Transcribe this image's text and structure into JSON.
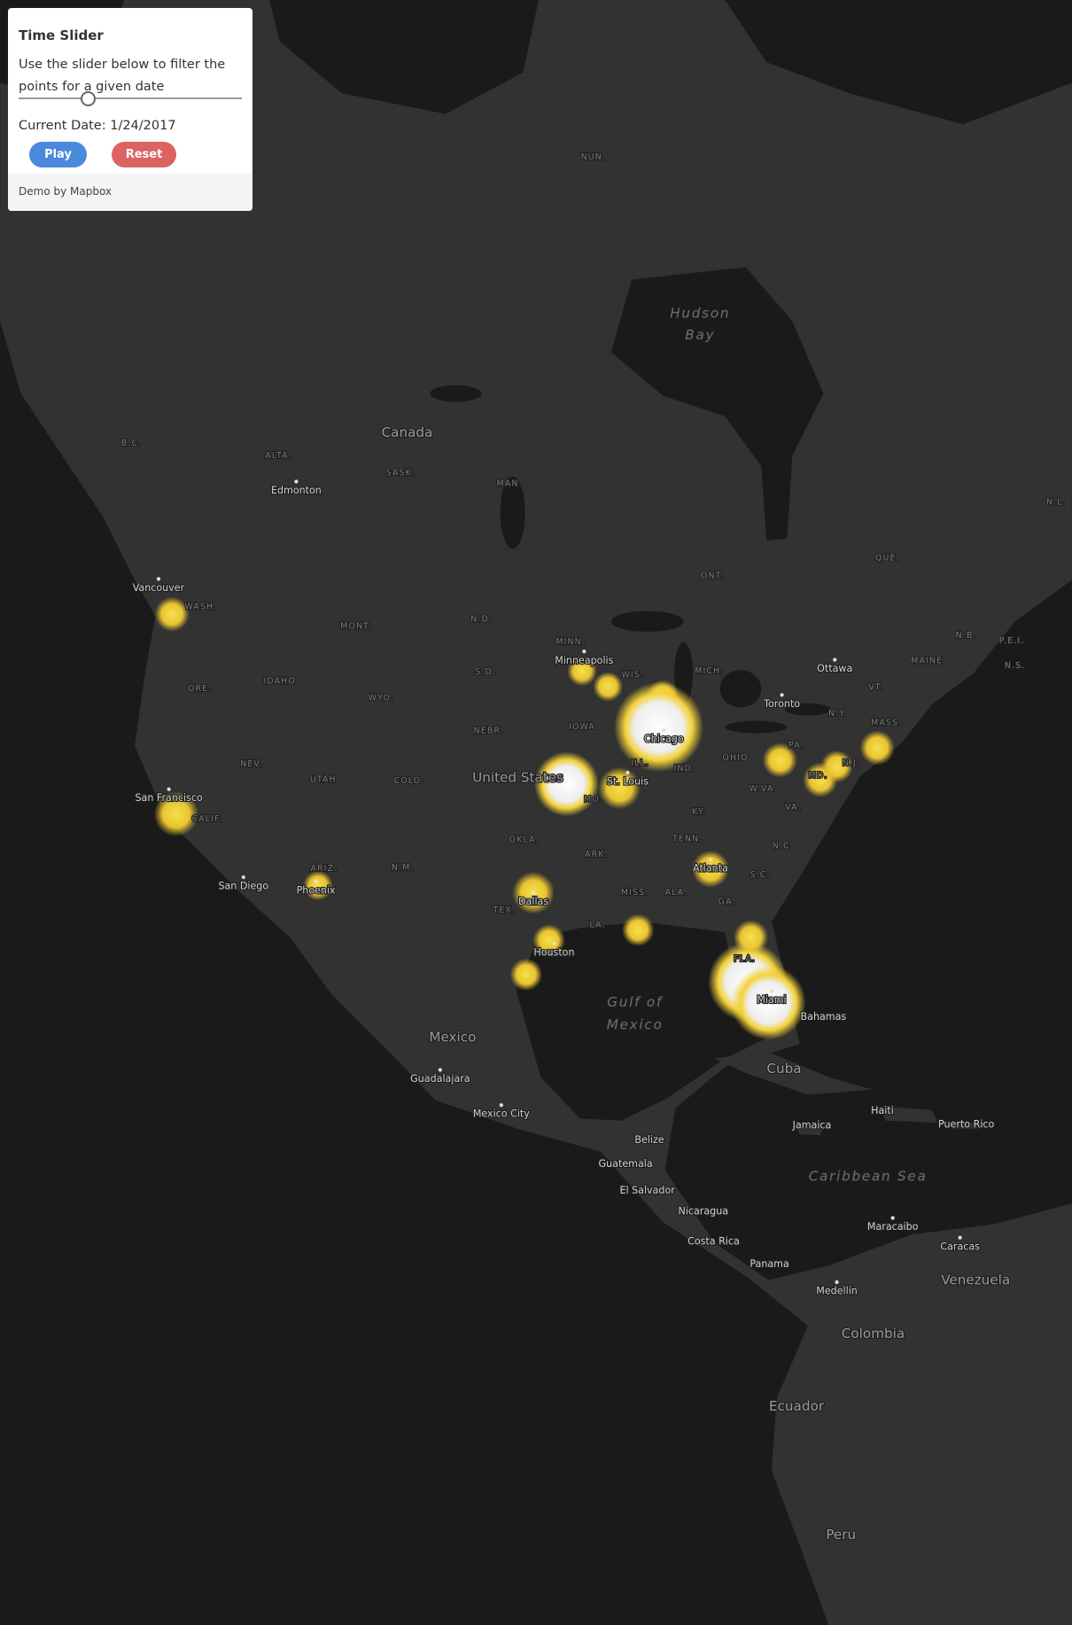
{
  "panel": {
    "title": "Time Slider",
    "description": "Use the slider below to filter the points for a given date",
    "date_label": "Current Date: 1/24/2017",
    "buttons": [
      "Play",
      "Reset"
    ],
    "footer": "Demo by Mapbox"
  },
  "map": {
    "labels": [
      "NUN.",
      "Hudson",
      "Bay",
      "Canada",
      "B.C.",
      "ALTA.",
      "SASK.",
      "MAN.",
      "Edmonton",
      "ONT.",
      "QUE.",
      "N.L.",
      "N.B.",
      "P.E.I.",
      "N.S.",
      "Vancouver",
      "WASH.",
      "MONT.",
      "N.D.",
      "MINN.",
      "Minneapolis",
      "WIS.",
      "MICH.",
      "Ottawa",
      "MAINE",
      "VT.",
      "S.D.",
      "IDAHO",
      "ORE.",
      "WYO.",
      "Toronto",
      "N.Y.",
      "MASS.",
      "NEBR.",
      "IOWA",
      "Chicago",
      "PA.",
      "OHIO",
      "N.J.",
      "NEV.",
      "UTAH",
      "COLO.",
      "United States",
      "St. Louis",
      "MO.",
      "ILL.",
      "IND.",
      "MD.",
      "W.VA.",
      "VA.",
      "KY.",
      "San Francisco",
      "CALIF.",
      "OKLA.",
      "TENN.",
      "N.C.",
      "ARK.",
      "ARIZ.",
      "N.M.",
      "Atlanta",
      "S.C.",
      "San Diego",
      "Phoenix",
      "Dallas",
      "MISS.",
      "ALA.",
      "GA.",
      "TEX.",
      "LA.",
      "Houston",
      "FLA.",
      "Miami",
      "Gulf of",
      "Mexico",
      "Bahamas",
      "Mexico",
      "Guadalajara",
      "Mexico City",
      "Cuba",
      "Jamaica",
      "Haiti",
      "Puerto Rico",
      "Belize",
      "Guatemala",
      "Caribbean Sea",
      "El Salvador",
      "Nicaragua",
      "Costa Rica",
      "Panama",
      "Maracaibo",
      "Caracas",
      "Venezuela",
      "Medellín",
      "Colombia",
      "Ecuador",
      "Peru"
    ]
  }
}
